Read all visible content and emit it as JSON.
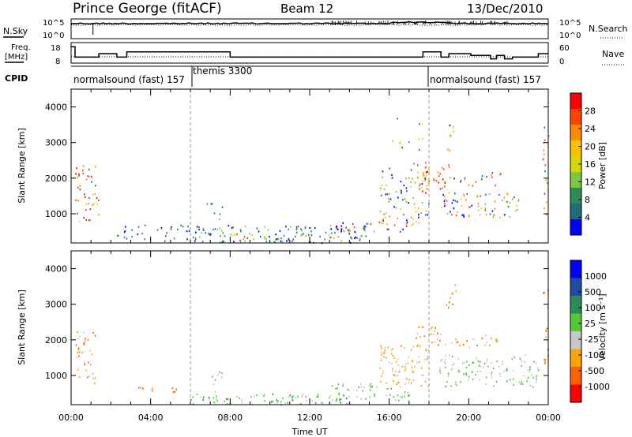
{
  "header": {
    "station": "Prince George (fitACF)",
    "beam": "Beam 12",
    "date": "13/Dec/2010"
  },
  "noise_panel": {
    "left_label": "N.Sky",
    "right_label": "N.Search",
    "left_ticks": [
      "10^5",
      "10^0"
    ],
    "right_ticks": [
      "10^5",
      "10^0"
    ]
  },
  "freq_panel": {
    "left_label_1": "Freq.",
    "left_label_2": "[MHz]",
    "left_ticks": [
      "18",
      "8"
    ],
    "right_label": "Nave",
    "right_ticks": [
      "60",
      "0"
    ]
  },
  "cpid": {
    "label": "CPID",
    "segments": [
      {
        "text": "normalsound (fast) 157",
        "start_hour": 0
      },
      {
        "text": "themis 3300",
        "start_hour": 6
      },
      {
        "text": "normalsound (fast) 157",
        "start_hour": 18
      }
    ]
  },
  "power_colorbar": {
    "label": "Power [dB]",
    "ticks": [
      "28",
      "24",
      "20",
      "16",
      "12",
      "8",
      "4"
    ],
    "colors": [
      "#ff0000",
      "#ff4400",
      "#ff8c00",
      "#ffc000",
      "#d8d800",
      "#7ac943",
      "#2e8b57",
      "#1f6d7a",
      "#0000ff"
    ]
  },
  "velocity_colorbar": {
    "label": "Velocity [m s⁻¹]",
    "ticks": [
      "1000",
      "500",
      "100",
      "25",
      "-25",
      "-100",
      "-500",
      "-1000"
    ],
    "colors": [
      "#0000ff",
      "#1f4ea0",
      "#2e8b57",
      "#55c83a",
      "#c8c8c8",
      "#ffa500",
      "#ff6000",
      "#ff0000"
    ]
  },
  "chart_data": {
    "type": "heatmap",
    "x_axis": {
      "label": "Time UT",
      "ticks": [
        "00:00",
        "04:00",
        "08:00",
        "12:00",
        "16:00",
        "20:00",
        "00:00"
      ],
      "range_hours": [
        0,
        24
      ]
    },
    "y_axis": {
      "label": "Slant Range [km]",
      "ticks": [
        "1000",
        "2000",
        "3000",
        "4000"
      ],
      "range_km": [
        180,
        4500
      ]
    },
    "cpid_change_hours": [
      6,
      18
    ],
    "panels": [
      "Power",
      "Velocity"
    ]
  }
}
